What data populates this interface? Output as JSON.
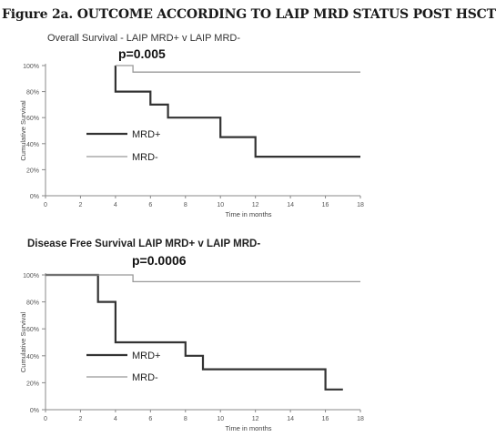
{
  "figure_title": "Figure 2a. OUTCOME ACCORDING TO LAIP MRD STATUS POST HSCT",
  "chart_data": [
    {
      "type": "line",
      "step": true,
      "title": "Overall Survival - LAIP MRD+ v LAIP MRD-",
      "annotation": "p=0.005",
      "xlabel": "Time in months",
      "ylabel": "Cumulative Survival",
      "xlim": [
        0,
        18
      ],
      "ylim": [
        0,
        100
      ],
      "xticks": [
        "0",
        "2",
        "4",
        "6",
        "8",
        "10",
        "12",
        "14",
        "16",
        "18"
      ],
      "yticks": [
        "0%",
        "20%",
        "40%",
        "60%",
        "80%",
        "100%"
      ],
      "legend_position": "bottom-left-inside",
      "colors": {
        "MRD+": "#333333",
        "MRD-": "#999999"
      },
      "series": [
        {
          "name": "MRD+",
          "x": [
            4,
            4,
            6,
            6,
            7,
            7,
            10,
            10,
            12,
            12,
            18
          ],
          "y": [
            100,
            80,
            80,
            70,
            70,
            60,
            60,
            45,
            45,
            30,
            30
          ]
        },
        {
          "name": "MRD-",
          "x": [
            4,
            5,
            5,
            18
          ],
          "y": [
            100,
            100,
            95,
            95
          ]
        }
      ]
    },
    {
      "type": "line",
      "step": true,
      "title": "Disease Free Survival LAIP MRD+ v LAIP MRD-",
      "annotation": "p=0.0006",
      "xlabel": "Time in months",
      "ylabel": "Cumulative Survival",
      "xlim": [
        0,
        18
      ],
      "ylim": [
        0,
        100
      ],
      "xticks": [
        "0",
        "2",
        "4",
        "6",
        "8",
        "10",
        "12",
        "14",
        "16",
        "18"
      ],
      "yticks": [
        "0%",
        "20%",
        "40%",
        "60%",
        "80%",
        "100%"
      ],
      "legend_position": "bottom-left-inside",
      "colors": {
        "MRD+": "#333333",
        "MRD-": "#999999"
      },
      "series": [
        {
          "name": "MRD+",
          "x": [
            0,
            3,
            3,
            4,
            4,
            8,
            8,
            9,
            9,
            16,
            16,
            17
          ],
          "y": [
            100,
            100,
            80,
            80,
            50,
            50,
            40,
            40,
            30,
            30,
            15,
            15
          ]
        },
        {
          "name": "MRD-",
          "x": [
            0,
            5,
            5,
            18
          ],
          "y": [
            100,
            100,
            95,
            95
          ]
        }
      ]
    }
  ]
}
